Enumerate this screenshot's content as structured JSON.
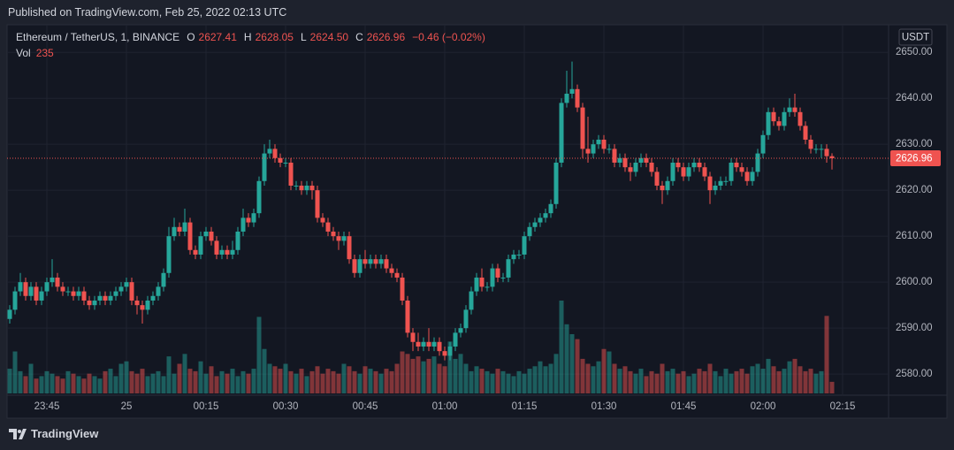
{
  "header": {
    "published": "Published on TradingView.com, Feb 25, 2022 02:13 UTC"
  },
  "chart_data": {
    "type": "candlestick",
    "symbol": "Ethereum / TetherUS, 1, BINANCE",
    "ohlc_labels": [
      "O",
      "H",
      "L",
      "C"
    ],
    "last_ohlc_labels": [
      "2627.41",
      "2628.05",
      "2624.50",
      "2626.96"
    ],
    "change": "−0.46 (−0.02%)",
    "volume_label": "Vol",
    "currency": "USDT",
    "up_color": "#26a69a",
    "down_color": "#ef5350",
    "grid": true,
    "ylim": [
      2575.8,
      2656
    ],
    "yticks": [
      {
        "value": 2580,
        "label": "2580.00"
      },
      {
        "value": 2590,
        "label": "2590.00"
      },
      {
        "value": 2600,
        "label": "2600.00"
      },
      {
        "value": 2610,
        "label": "2610.00"
      },
      {
        "value": 2620,
        "label": "2620.00"
      },
      {
        "value": 2630,
        "label": "2630.00"
      },
      {
        "value": 2640,
        "label": "2640.00"
      },
      {
        "value": 2650,
        "label": "2650.00"
      }
    ],
    "xticks": [
      {
        "value": "23:45",
        "label": "23:45"
      },
      {
        "value": "00:00",
        "label": "25"
      },
      {
        "value": "00:15",
        "label": "00:15"
      },
      {
        "value": "00:30",
        "label": "00:30"
      },
      {
        "value": "00:45",
        "label": "00:45"
      },
      {
        "value": "01:00",
        "label": "01:00"
      },
      {
        "value": "01:15",
        "label": "01:15"
      },
      {
        "value": "01:30",
        "label": "01:30"
      },
      {
        "value": "01:45",
        "label": "01:45"
      },
      {
        "value": "02:00",
        "label": "02:00"
      },
      {
        "value": "02:15",
        "label": "02:15"
      }
    ],
    "x": [
      "23:38",
      "23:39",
      "23:40",
      "23:41",
      "23:42",
      "23:43",
      "23:44",
      "23:45",
      "23:46",
      "23:47",
      "23:48",
      "23:49",
      "23:50",
      "23:51",
      "23:52",
      "23:53",
      "23:54",
      "23:55",
      "23:56",
      "23:57",
      "23:58",
      "23:59",
      "00:00",
      "00:01",
      "00:02",
      "00:03",
      "00:04",
      "00:05",
      "00:06",
      "00:07",
      "00:08",
      "00:09",
      "00:10",
      "00:11",
      "00:12",
      "00:13",
      "00:14",
      "00:15",
      "00:16",
      "00:17",
      "00:18",
      "00:19",
      "00:20",
      "00:21",
      "00:22",
      "00:23",
      "00:24",
      "00:25",
      "00:26",
      "00:27",
      "00:28",
      "00:29",
      "00:30",
      "00:31",
      "00:32",
      "00:33",
      "00:34",
      "00:35",
      "00:36",
      "00:37",
      "00:38",
      "00:39",
      "00:40",
      "00:41",
      "00:42",
      "00:43",
      "00:44",
      "00:45",
      "00:46",
      "00:47",
      "00:48",
      "00:49",
      "00:50",
      "00:51",
      "00:52",
      "00:53",
      "00:54",
      "00:55",
      "00:56",
      "00:57",
      "00:58",
      "00:59",
      "01:00",
      "01:01",
      "01:02",
      "01:03",
      "01:04",
      "01:05",
      "01:06",
      "01:07",
      "01:08",
      "01:09",
      "01:10",
      "01:11",
      "01:12",
      "01:13",
      "01:14",
      "01:15",
      "01:16",
      "01:17",
      "01:18",
      "01:19",
      "01:20",
      "01:21",
      "01:22",
      "01:23",
      "01:24",
      "01:25",
      "01:26",
      "01:27",
      "01:28",
      "01:29",
      "01:30",
      "01:31",
      "01:32",
      "01:33",
      "01:34",
      "01:35",
      "01:36",
      "01:37",
      "01:38",
      "01:39",
      "01:40",
      "01:41",
      "01:42",
      "01:43",
      "01:44",
      "01:45",
      "01:46",
      "01:47",
      "01:48",
      "01:49",
      "01:50",
      "01:51",
      "01:52",
      "01:53",
      "01:54",
      "01:55",
      "01:56",
      "01:57",
      "01:58",
      "01:59",
      "02:00",
      "02:01",
      "02:02",
      "02:03",
      "02:04",
      "02:05",
      "02:06",
      "02:07",
      "02:08",
      "02:09",
      "02:10",
      "02:11",
      "02:12",
      "02:13"
    ],
    "open": [
      2592,
      2594,
      2598,
      2600,
      2597,
      2599,
      2596,
      2598,
      2600,
      2601,
      2599,
      2598,
      2598,
      2597,
      2598,
      2596,
      2595,
      2596,
      2597,
      2596,
      2597,
      2598,
      2599,
      2600,
      2596,
      2595,
      2594,
      2596,
      2597,
      2599,
      2602,
      2610,
      2612,
      2611,
      2613,
      2607,
      2606,
      2610,
      2611,
      2609,
      2606,
      2607,
      2606,
      2607,
      2611,
      2614,
      2613,
      2615,
      2622,
      2628,
      2629,
      2627,
      2626,
      2626,
      2621,
      2621,
      2620,
      2621,
      2620,
      2614,
      2613,
      2611,
      2610,
      2609,
      2610,
      2605,
      2602,
      2605,
      2604,
      2605,
      2604,
      2605,
      2603,
      2602,
      2601,
      2596,
      2589,
      2587,
      2586,
      2587,
      2586,
      2587,
      2585,
      2584,
      2586,
      2589,
      2590,
      2594,
      2598,
      2601,
      2599,
      2599,
      2603,
      2601,
      2601,
      2605,
      2606,
      2606,
      2610,
      2612,
      2613,
      2614,
      2615,
      2617,
      2626,
      2639,
      2641,
      2642,
      2638,
      2629,
      2628,
      2630,
      2631,
      2629,
      2629,
      2626,
      2627,
      2625,
      2624,
      2626,
      2627,
      2626,
      2624,
      2621,
      2620,
      2622,
      2626,
      2625,
      2623,
      2625,
      2626,
      2625,
      2623,
      2620,
      2621,
      2622,
      2622,
      2626,
      2625,
      2624,
      2622,
      2624,
      2628,
      2632,
      2637,
      2635,
      2634,
      2637,
      2638,
      2637,
      2634,
      2631,
      2629,
      2629,
      2629,
      2627.41
    ],
    "high": [
      2595,
      2599,
      2602,
      2601,
      2600,
      2600,
      2599,
      2601,
      2605,
      2602,
      2600,
      2599,
      2599,
      2599,
      2599,
      2597,
      2597,
      2598,
      2598,
      2598,
      2599,
      2600,
      2601,
      2601,
      2597,
      2596,
      2597,
      2598,
      2600,
      2603,
      2612,
      2614,
      2613,
      2616,
      2614,
      2608,
      2611,
      2612,
      2612,
      2610,
      2608,
      2608,
      2609,
      2612,
      2616,
      2615,
      2616,
      2623,
      2630,
      2631,
      2630,
      2628,
      2627,
      2627,
      2622,
      2622,
      2622,
      2622,
      2621,
      2615,
      2614,
      2612,
      2611,
      2611,
      2611,
      2606,
      2606,
      2607,
      2606,
      2606,
      2606,
      2606,
      2604,
      2603,
      2602,
      2597,
      2590,
      2589,
      2588,
      2590,
      2588,
      2588,
      2586,
      2587,
      2590,
      2591,
      2595,
      2599,
      2602,
      2603,
      2600,
      2604,
      2604,
      2602,
      2606,
      2607,
      2607,
      2611,
      2613,
      2614,
      2615,
      2616,
      2618,
      2627,
      2640,
      2646,
      2648,
      2643,
      2639,
      2636,
      2631,
      2632,
      2632,
      2630,
      2630,
      2628,
      2628,
      2626,
      2627,
      2628,
      2628,
      2627,
      2625,
      2622,
      2623,
      2627,
      2627,
      2626,
      2626,
      2627,
      2627,
      2626,
      2624,
      2622,
      2623,
      2623,
      2627,
      2627,
      2626,
      2625,
      2625,
      2629,
      2633,
      2638,
      2638,
      2636,
      2638,
      2640,
      2641,
      2638,
      2635,
      2632,
      2630,
      2630,
      2630,
      2628.05
    ],
    "low": [
      2591,
      2593,
      2597,
      2596,
      2596,
      2595,
      2595,
      2597,
      2599,
      2598,
      2597,
      2597,
      2596,
      2596,
      2595,
      2594,
      2594,
      2595,
      2595,
      2595,
      2596,
      2597,
      2598,
      2595,
      2593,
      2591,
      2593,
      2595,
      2596,
      2598,
      2601,
      2609,
      2610,
      2610,
      2606,
      2605,
      2605,
      2609,
      2608,
      2605,
      2605,
      2605,
      2605,
      2606,
      2610,
      2612,
      2612,
      2614,
      2621,
      2627,
      2626,
      2625,
      2625,
      2620,
      2620,
      2619,
      2619,
      2618,
      2613,
      2612,
      2610,
      2609,
      2607,
      2608,
      2604,
      2601,
      2601,
      2603,
      2603,
      2603,
      2603,
      2602,
      2601,
      2600,
      2595,
      2588,
      2585,
      2585,
      2585,
      2585,
      2585,
      2584,
      2583,
      2583,
      2585,
      2588,
      2589,
      2593,
      2597,
      2598,
      2598,
      2598,
      2600,
      2600,
      2600,
      2604,
      2605,
      2605,
      2609,
      2611,
      2612,
      2613,
      2614,
      2616,
      2625,
      2638,
      2640,
      2637,
      2627,
      2626,
      2627,
      2629,
      2628,
      2628,
      2625,
      2625,
      2624,
      2622,
      2623,
      2625,
      2625,
      2623,
      2620,
      2617,
      2619,
      2621,
      2624,
      2622,
      2622,
      2624,
      2624,
      2622,
      2617,
      2619,
      2620,
      2621,
      2621,
      2624,
      2623,
      2621,
      2621,
      2623,
      2627,
      2631,
      2634,
      2633,
      2633,
      2636,
      2636,
      2633,
      2630,
      2628,
      2628,
      2627,
      2626,
      2624.5
    ],
    "close": [
      2594,
      2598,
      2600,
      2597,
      2599,
      2596,
      2598,
      2600,
      2601,
      2599,
      2598,
      2598,
      2597,
      2598,
      2596,
      2595,
      2596,
      2597,
      2596,
      2597,
      2598,
      2599,
      2600,
      2596,
      2595,
      2594,
      2596,
      2597,
      2599,
      2602,
      2610,
      2612,
      2611,
      2613,
      2607,
      2606,
      2610,
      2611,
      2609,
      2606,
      2607,
      2606,
      2607,
      2611,
      2614,
      2613,
      2615,
      2622,
      2628,
      2629,
      2627,
      2626,
      2626,
      2621,
      2621,
      2620,
      2621,
      2620,
      2614,
      2613,
      2611,
      2610,
      2609,
      2610,
      2605,
      2602,
      2605,
      2604,
      2605,
      2604,
      2605,
      2603,
      2602,
      2601,
      2596,
      2589,
      2587,
      2586,
      2587,
      2586,
      2587,
      2585,
      2584,
      2586,
      2589,
      2590,
      2594,
      2598,
      2601,
      2599,
      2599,
      2603,
      2601,
      2601,
      2605,
      2606,
      2606,
      2610,
      2612,
      2613,
      2614,
      2615,
      2617,
      2626,
      2639,
      2641,
      2642,
      2638,
      2629,
      2628,
      2630,
      2631,
      2629,
      2629,
      2626,
      2627,
      2625,
      2624,
      2626,
      2627,
      2626,
      2624,
      2621,
      2620,
      2622,
      2626,
      2625,
      2623,
      2625,
      2626,
      2625,
      2623,
      2620,
      2621,
      2622,
      2622,
      2626,
      2625,
      2624,
      2622,
      2624,
      2628,
      2632,
      2637,
      2635,
      2634,
      2637,
      2638,
      2637,
      2634,
      2631,
      2629,
      2629,
      2629,
      2627.41,
      2626.96
    ],
    "volume": [
      500,
      850,
      450,
      350,
      600,
      300,
      350,
      450,
      400,
      350,
      300,
      450,
      400,
      350,
      300,
      400,
      350,
      300,
      450,
      500,
      350,
      600,
      650,
      450,
      400,
      500,
      350,
      400,
      450,
      350,
      750,
      400,
      600,
      800,
      500,
      450,
      650,
      400,
      550,
      350,
      450,
      400,
      500,
      350,
      450,
      400,
      500,
      1550,
      900,
      600,
      550,
      500,
      600,
      450,
      400,
      500,
      350,
      450,
      550,
      400,
      500,
      450,
      400,
      600,
      550,
      450,
      400,
      550,
      500,
      450,
      400,
      500,
      450,
      600,
      850,
      800,
      700,
      750,
      650,
      700,
      750,
      600,
      550,
      1050,
      700,
      800,
      600,
      450,
      550,
      500,
      450,
      400,
      500,
      450,
      400,
      350,
      450,
      400,
      500,
      550,
      650,
      550,
      600,
      800,
      1880,
      1400,
      1200,
      1100,
      700,
      600,
      550,
      650,
      900,
      850,
      600,
      500,
      550,
      450,
      400,
      500,
      350,
      450,
      400,
      600,
      450,
      500,
      400,
      450,
      350,
      400,
      500,
      450,
      600,
      450,
      350,
      500,
      400,
      450,
      500,
      400,
      550,
      600,
      500,
      700,
      550,
      450,
      500,
      650,
      700,
      550,
      450,
      500,
      400,
      450,
      1570,
      235
    ]
  },
  "footer": {
    "brand": "TradingView"
  }
}
